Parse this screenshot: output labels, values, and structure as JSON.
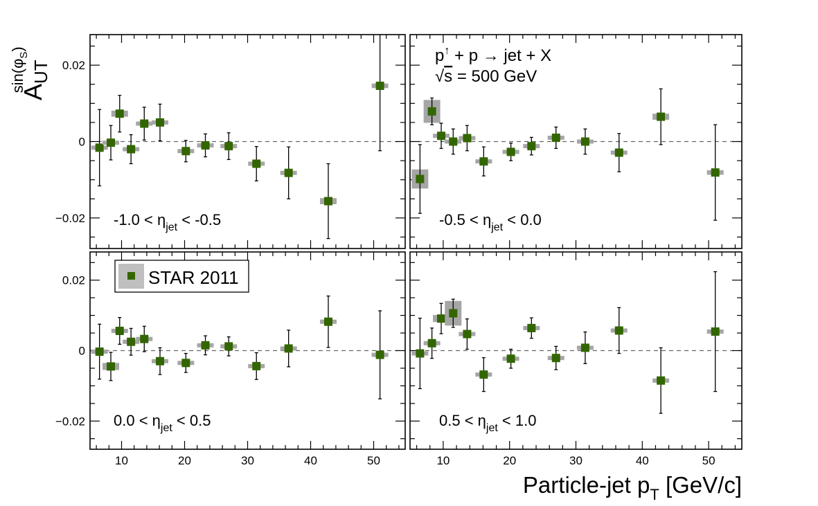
{
  "chart_data": {
    "type": "scatter",
    "ylabel_main": "A",
    "ylabel_sub": "UT",
    "ylabel_sup": "sin(φ",
    "ylabel_sup_sub": "S",
    "ylabel_sup_end": ")",
    "xlabel_main": "Particle-jet p",
    "xlabel_sub": "T",
    "xlabel_end": " [GeV/c]",
    "xlim": [
      5,
      55
    ],
    "ylim": [
      -0.028,
      0.028
    ],
    "xticks": [
      10,
      20,
      30,
      40,
      50
    ],
    "xtick_labels": [
      "10",
      "20",
      "30",
      "40",
      "50"
    ],
    "yticks": [
      -0.02,
      0,
      0.02
    ],
    "ytick_labels": [
      "−0.02",
      "0",
      "0.02"
    ],
    "legend": {
      "label": "STAR 2011",
      "position": "top-left"
    },
    "process": {
      "a": "p",
      "b": " + p ",
      "arrow": "→",
      "c": " jet + X"
    },
    "energy": {
      "root": "√",
      "s": "s",
      "rest": " = 500 GeV"
    },
    "panels": [
      {
        "name": "panel-eta-m10-m05",
        "label": {
          "pre": "-1.0 < η",
          "sub": "jet",
          "post": " < -0.5"
        },
        "points": [
          {
            "x": 6.5,
            "y": -0.0016,
            "err": 0.01,
            "sys": 0.0005
          },
          {
            "x": 8.3,
            "y": -0.0003,
            "err": 0.0045,
            "sys": 0.0005
          },
          {
            "x": 9.7,
            "y": 0.0073,
            "err": 0.0048,
            "sys": 0.0008
          },
          {
            "x": 11.5,
            "y": -0.002,
            "err": 0.0038,
            "sys": 0.0005
          },
          {
            "x": 13.6,
            "y": 0.0047,
            "err": 0.0043,
            "sys": 0.0004
          },
          {
            "x": 16.1,
            "y": 0.005,
            "err": 0.0048,
            "sys": 0.0005
          },
          {
            "x": 20.2,
            "y": -0.0025,
            "err": 0.0028,
            "sys": 0.0004
          },
          {
            "x": 23.3,
            "y": -0.001,
            "err": 0.003,
            "sys": 0.0003
          },
          {
            "x": 27.0,
            "y": -0.0012,
            "err": 0.0035,
            "sys": 0.0003
          },
          {
            "x": 31.4,
            "y": -0.0058,
            "err": 0.0045,
            "sys": 0.0004
          },
          {
            "x": 36.5,
            "y": -0.0082,
            "err": 0.0068,
            "sys": 0.0004
          },
          {
            "x": 42.8,
            "y": -0.0156,
            "err": 0.0098,
            "sys": 0.0008
          },
          {
            "x": 51.0,
            "y": 0.0146,
            "err": 0.017,
            "sys": 0.0006
          }
        ]
      },
      {
        "name": "panel-eta-m05-00",
        "label": {
          "pre": "-0.5 < η",
          "sub": "jet",
          "post": " < 0.0"
        },
        "points": [
          {
            "x": 6.5,
            "y": -0.0098,
            "err": 0.009,
            "sys": 0.0025
          },
          {
            "x": 8.3,
            "y": 0.0079,
            "err": 0.0035,
            "sys": 0.003
          },
          {
            "x": 9.7,
            "y": 0.0015,
            "err": 0.0033,
            "sys": 0.0005
          },
          {
            "x": 11.5,
            "y": 0.0,
            "err": 0.0033,
            "sys": 0.0005
          },
          {
            "x": 13.6,
            "y": 0.0009,
            "err": 0.0033,
            "sys": 0.0005
          },
          {
            "x": 16.1,
            "y": -0.0052,
            "err": 0.0038,
            "sys": 0.0005
          },
          {
            "x": 20.2,
            "y": -0.0027,
            "err": 0.0023,
            "sys": 0.0004
          },
          {
            "x": 23.3,
            "y": -0.0012,
            "err": 0.0023,
            "sys": 0.0003
          },
          {
            "x": 27.0,
            "y": 0.001,
            "err": 0.0028,
            "sys": 0.0004
          },
          {
            "x": 31.4,
            "y": 0.0,
            "err": 0.0033,
            "sys": 0.0003
          },
          {
            "x": 36.5,
            "y": -0.0029,
            "err": 0.005,
            "sys": 0.0004
          },
          {
            "x": 42.8,
            "y": 0.0065,
            "err": 0.0073,
            "sys": 0.0008
          },
          {
            "x": 51.0,
            "y": -0.0081,
            "err": 0.0125,
            "sys": 0.0006
          }
        ]
      },
      {
        "name": "panel-eta-00-05",
        "label": {
          "pre": "0.0 < η",
          "sub": "jet",
          "post": " < 0.5"
        },
        "points": [
          {
            "x": 6.5,
            "y": -0.0003,
            "err": 0.0078,
            "sys": 0.0005
          },
          {
            "x": 8.3,
            "y": -0.0045,
            "err": 0.004,
            "sys": 0.001
          },
          {
            "x": 9.7,
            "y": 0.0056,
            "err": 0.0038,
            "sys": 0.0006
          },
          {
            "x": 11.5,
            "y": 0.0025,
            "err": 0.0038,
            "sys": 0.0005
          },
          {
            "x": 13.6,
            "y": 0.0033,
            "err": 0.0036,
            "sys": 0.0005
          },
          {
            "x": 16.1,
            "y": -0.003,
            "err": 0.0038,
            "sys": 0.0005
          },
          {
            "x": 20.2,
            "y": -0.0035,
            "err": 0.0027,
            "sys": 0.0004
          },
          {
            "x": 23.3,
            "y": 0.0015,
            "err": 0.0027,
            "sys": 0.0004
          },
          {
            "x": 27.0,
            "y": 0.0012,
            "err": 0.0027,
            "sys": 0.0003
          },
          {
            "x": 31.4,
            "y": -0.0044,
            "err": 0.0038,
            "sys": 0.0003
          },
          {
            "x": 36.5,
            "y": 0.0006,
            "err": 0.0052,
            "sys": 0.0003
          },
          {
            "x": 42.8,
            "y": 0.0082,
            "err": 0.0073,
            "sys": 0.0006
          },
          {
            "x": 51.0,
            "y": -0.0012,
            "err": 0.0125,
            "sys": 0.0006
          }
        ]
      },
      {
        "name": "panel-eta-05-10",
        "label": {
          "pre": "0.5 < η",
          "sub": "jet",
          "post": " < 1.0"
        },
        "points": [
          {
            "x": 6.5,
            "y": -0.0008,
            "err": 0.01,
            "sys": 0.0004
          },
          {
            "x": 8.3,
            "y": 0.0021,
            "err": 0.0043,
            "sys": 0.0005
          },
          {
            "x": 9.7,
            "y": 0.0091,
            "err": 0.0043,
            "sys": 0.001
          },
          {
            "x": 11.5,
            "y": 0.0106,
            "err": 0.004,
            "sys": 0.0035
          },
          {
            "x": 13.6,
            "y": 0.0047,
            "err": 0.0043,
            "sys": 0.0005
          },
          {
            "x": 16.1,
            "y": -0.0068,
            "err": 0.0048,
            "sys": 0.0005
          },
          {
            "x": 20.2,
            "y": -0.0023,
            "err": 0.0027,
            "sys": 0.0004
          },
          {
            "x": 23.3,
            "y": 0.0064,
            "err": 0.0029,
            "sys": 0.0004
          },
          {
            "x": 27.0,
            "y": -0.0021,
            "err": 0.0033,
            "sys": 0.0004
          },
          {
            "x": 31.4,
            "y": 0.0008,
            "err": 0.0045,
            "sys": 0.0003
          },
          {
            "x": 36.5,
            "y": 0.0057,
            "err": 0.0065,
            "sys": 0.0004
          },
          {
            "x": 42.8,
            "y": -0.0085,
            "err": 0.0093,
            "sys": 0.0006
          },
          {
            "x": 51.0,
            "y": 0.0054,
            "err": 0.017,
            "sys": 0.0006
          }
        ]
      }
    ]
  },
  "colors": {
    "marker": "#336600",
    "systematic": "#a6a6a6",
    "legend_sys": "#bfbfbf",
    "zero_line": "#666666",
    "axis": "#000000"
  }
}
